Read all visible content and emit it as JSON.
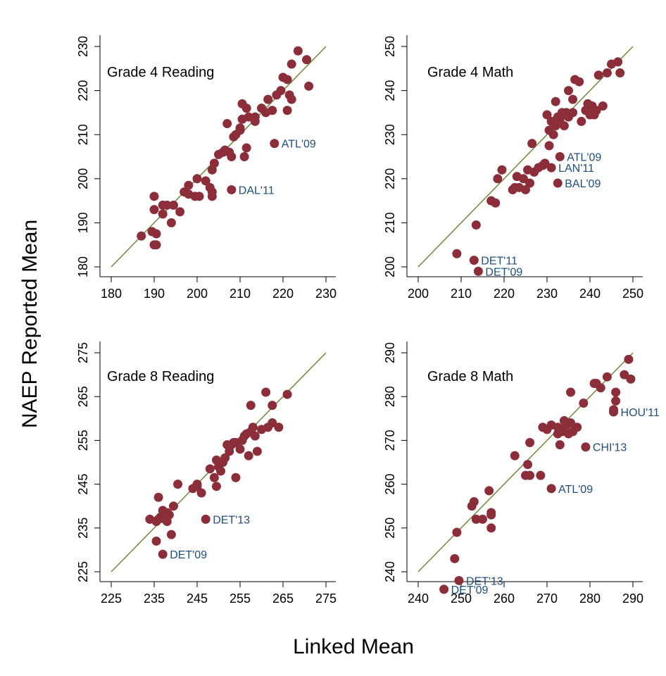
{
  "figure": {
    "ylabel": "NAEP Reported Mean",
    "xlabel": "Linked Mean"
  },
  "colors": {
    "point": "#8b2e3a",
    "line": "#6a8a3a",
    "label": "#1f4e79"
  },
  "chart_data": [
    {
      "type": "scatter",
      "title": "Grade 4 Reading",
      "xlim": [
        180,
        230
      ],
      "ylim": [
        180,
        230
      ],
      "xticks": [
        180,
        190,
        200,
        210,
        220,
        230
      ],
      "yticks": [
        180,
        190,
        200,
        210,
        220,
        230
      ],
      "fit_line": [
        [
          180,
          180
        ],
        [
          230,
          230
        ]
      ],
      "points": [
        [
          187,
          187
        ],
        [
          189.5,
          188
        ],
        [
          190,
          185
        ],
        [
          190.5,
          185
        ],
        [
          190.5,
          187.5
        ],
        [
          190,
          193
        ],
        [
          190,
          196
        ],
        [
          192,
          192
        ],
        [
          192,
          194
        ],
        [
          193,
          194
        ],
        [
          194,
          190
        ],
        [
          194.5,
          194
        ],
        [
          196,
          192.5
        ],
        [
          197,
          197
        ],
        [
          198,
          196.5
        ],
        [
          198,
          198.5
        ],
        [
          199.5,
          196
        ],
        [
          200,
          200
        ],
        [
          200.5,
          196
        ],
        [
          202,
          199.5
        ],
        [
          203,
          198
        ],
        [
          203.5,
          196
        ],
        [
          203.5,
          197
        ],
        [
          203.5,
          202
        ],
        [
          204,
          203.5
        ],
        [
          205,
          205.5
        ],
        [
          206,
          206
        ],
        [
          206.5,
          206.5
        ],
        [
          207,
          212.5
        ],
        [
          207.5,
          206
        ],
        [
          208,
          205
        ],
        [
          208.5,
          209.5
        ],
        [
          209,
          210
        ],
        [
          210,
          211
        ],
        [
          210,
          211.5
        ],
        [
          210.5,
          217
        ],
        [
          210.5,
          213.5
        ],
        [
          211,
          205
        ],
        [
          211.5,
          207
        ],
        [
          211.5,
          216
        ],
        [
          212,
          214
        ],
        [
          213.5,
          213
        ],
        [
          213.5,
          214
        ],
        [
          215,
          216
        ],
        [
          216,
          215
        ],
        [
          216.5,
          218
        ],
        [
          217.5,
          215.5
        ],
        [
          218.5,
          219
        ],
        [
          219.5,
          220
        ],
        [
          220,
          223
        ],
        [
          221,
          215.5
        ],
        [
          221,
          222.5
        ],
        [
          221.5,
          219
        ],
        [
          222,
          218
        ],
        [
          222,
          226
        ],
        [
          223.5,
          229
        ],
        [
          225.5,
          227
        ],
        [
          226,
          221
        ],
        [
          208,
          197.5
        ],
        [
          218,
          208
        ]
      ],
      "labeled": [
        {
          "x": 218,
          "y": 208,
          "label": "ATL'09"
        },
        {
          "x": 208,
          "y": 197.5,
          "label": "DAL'11"
        }
      ]
    },
    {
      "type": "scatter",
      "title": "Grade 4 Math",
      "xlim": [
        200,
        250
      ],
      "ylim": [
        200,
        250
      ],
      "xticks": [
        200,
        210,
        220,
        230,
        240,
        250
      ],
      "yticks": [
        200,
        210,
        220,
        230,
        240,
        250
      ],
      "fit_line": [
        [
          200,
          200
        ],
        [
          250,
          250
        ]
      ],
      "points": [
        [
          209,
          203
        ],
        [
          213,
          201.5
        ],
        [
          214,
          199
        ],
        [
          213.5,
          209.5
        ],
        [
          217,
          215
        ],
        [
          218,
          214.5
        ],
        [
          218.5,
          220
        ],
        [
          219.5,
          222
        ],
        [
          222,
          217.5
        ],
        [
          222.5,
          218
        ],
        [
          223,
          220.5
        ],
        [
          223.5,
          218
        ],
        [
          224.5,
          220
        ],
        [
          225,
          217.5
        ],
        [
          225.5,
          222
        ],
        [
          226,
          219
        ],
        [
          226.5,
          228
        ],
        [
          227,
          221.5
        ],
        [
          228,
          222.5
        ],
        [
          229,
          223
        ],
        [
          229.5,
          223.5
        ],
        [
          230,
          234.5
        ],
        [
          230.5,
          227.5
        ],
        [
          230.5,
          231
        ],
        [
          231,
          233
        ],
        [
          231.5,
          230
        ],
        [
          232,
          232
        ],
        [
          232,
          237.5
        ],
        [
          232.5,
          234
        ],
        [
          233,
          233.5
        ],
        [
          233.5,
          235
        ],
        [
          234,
          232
        ],
        [
          234.5,
          235
        ],
        [
          235,
          234
        ],
        [
          235,
          240
        ],
        [
          236,
          235
        ],
        [
          236,
          238
        ],
        [
          236.5,
          242.5
        ],
        [
          237.5,
          242
        ],
        [
          238,
          233
        ],
        [
          239,
          235.5
        ],
        [
          239.5,
          237
        ],
        [
          240,
          234.5
        ],
        [
          240.5,
          236.5
        ],
        [
          241,
          234.5
        ],
        [
          241.5,
          235.5
        ],
        [
          242,
          243.5
        ],
        [
          243,
          236.5
        ],
        [
          244,
          244
        ],
        [
          245,
          246
        ],
        [
          246.5,
          246.5
        ],
        [
          247,
          244
        ],
        [
          233,
          225
        ],
        [
          231,
          222.5
        ],
        [
          232.5,
          219
        ]
      ],
      "labeled": [
        {
          "x": 214,
          "y": 199,
          "label": "DET'09"
        },
        {
          "x": 213,
          "y": 201.5,
          "label": "DET'11"
        },
        {
          "x": 233,
          "y": 225,
          "label": "ATL'09"
        },
        {
          "x": 231,
          "y": 222.5,
          "label": "LAN'11"
        },
        {
          "x": 232.5,
          "y": 219,
          "label": "BAL'09"
        }
      ]
    },
    {
      "type": "scatter",
      "title": "Grade 8 Reading",
      "xlim": [
        225,
        275
      ],
      "ylim": [
        225,
        275
      ],
      "xticks": [
        225,
        235,
        245,
        255,
        265,
        275
      ],
      "yticks": [
        225,
        235,
        245,
        255,
        265,
        275
      ],
      "fit_line": [
        [
          225,
          225
        ],
        [
          275,
          275
        ]
      ],
      "points": [
        [
          234,
          237
        ],
        [
          235.5,
          236.5
        ],
        [
          236,
          242
        ],
        [
          236,
          237
        ],
        [
          236.5,
          237.5
        ],
        [
          237,
          239
        ],
        [
          237.5,
          237
        ],
        [
          238,
          236.5
        ],
        [
          238,
          238.5
        ],
        [
          238.5,
          238
        ],
        [
          239,
          233.5
        ],
        [
          239.5,
          240
        ],
        [
          240.5,
          245
        ],
        [
          244,
          244
        ],
        [
          245,
          244.5
        ],
        [
          245,
          245
        ],
        [
          246,
          243
        ],
        [
          248,
          248.5
        ],
        [
          249,
          246.5
        ],
        [
          249.5,
          244.5
        ],
        [
          249.5,
          250.5
        ],
        [
          250,
          249
        ],
        [
          250.5,
          248
        ],
        [
          251,
          250
        ],
        [
          251.5,
          251
        ],
        [
          252,
          254
        ],
        [
          252.5,
          252.5
        ],
        [
          253,
          254
        ],
        [
          253.5,
          254.5
        ],
        [
          254,
          246.5
        ],
        [
          254,
          254.5
        ],
        [
          255,
          253
        ],
        [
          255.5,
          255
        ],
        [
          256,
          256
        ],
        [
          256.5,
          256.5
        ],
        [
          257,
          251.5
        ],
        [
          257.5,
          257
        ],
        [
          257.5,
          263
        ],
        [
          258,
          258
        ],
        [
          258.5,
          256
        ],
        [
          259,
          252.5
        ],
        [
          260,
          257.5
        ],
        [
          261,
          266
        ],
        [
          261.5,
          258
        ],
        [
          262.5,
          263
        ],
        [
          262.5,
          259
        ],
        [
          264,
          258
        ],
        [
          266,
          265.5
        ],
        [
          235.5,
          232
        ],
        [
          237,
          229
        ],
        [
          247,
          237
        ]
      ],
      "labeled": [
        {
          "x": 237,
          "y": 229,
          "label": "DET'09"
        },
        {
          "x": 247,
          "y": 237,
          "label": "DET'13"
        }
      ]
    },
    {
      "type": "scatter",
      "title": "Grade 8 Math",
      "xlim": [
        240,
        290
      ],
      "ylim": [
        240,
        290
      ],
      "xticks": [
        240,
        250,
        260,
        270,
        280,
        290
      ],
      "yticks": [
        240,
        250,
        260,
        270,
        280,
        290
      ],
      "fit_line": [
        [
          240,
          240
        ],
        [
          290,
          290
        ]
      ],
      "points": [
        [
          248.5,
          243
        ],
        [
          249,
          249
        ],
        [
          252.5,
          255
        ],
        [
          253,
          256
        ],
        [
          253.5,
          252
        ],
        [
          255,
          252
        ],
        [
          256.5,
          258.5
        ],
        [
          257,
          250
        ],
        [
          257,
          253
        ],
        [
          257,
          253.5
        ],
        [
          262.5,
          266.5
        ],
        [
          265,
          262
        ],
        [
          265.5,
          264.5
        ],
        [
          266,
          262
        ],
        [
          266,
          269.5
        ],
        [
          268.5,
          262
        ],
        [
          269,
          273
        ],
        [
          270,
          272.5
        ],
        [
          271,
          273.5
        ],
        [
          272.5,
          271.5
        ],
        [
          272.5,
          273
        ],
        [
          273,
          269
        ],
        [
          273.5,
          272
        ],
        [
          274,
          274.5
        ],
        [
          274.5,
          273.5
        ],
        [
          275,
          271.5
        ],
        [
          275.5,
          274
        ],
        [
          275.5,
          281
        ],
        [
          276,
          272
        ],
        [
          277,
          273
        ],
        [
          278.5,
          278.5
        ],
        [
          281,
          283
        ],
        [
          281.5,
          283
        ],
        [
          282.5,
          282
        ],
        [
          284,
          284.5
        ],
        [
          285.5,
          277
        ],
        [
          286,
          281
        ],
        [
          286,
          279
        ],
        [
          288,
          285
        ],
        [
          289,
          288.5
        ],
        [
          289.5,
          284
        ],
        [
          246,
          236
        ],
        [
          249.5,
          238
        ],
        [
          271,
          259
        ],
        [
          279,
          268.5
        ],
        [
          285.5,
          276.5
        ]
      ],
      "labeled": [
        {
          "x": 246,
          "y": 236,
          "label": "DET'09"
        },
        {
          "x": 249.5,
          "y": 238,
          "label": "DET'13"
        },
        {
          "x": 271,
          "y": 259,
          "label": "ATL'09"
        },
        {
          "x": 279,
          "y": 268.5,
          "label": "CHI'13"
        },
        {
          "x": 285.5,
          "y": 276.5,
          "label": "HOU'11"
        }
      ]
    }
  ]
}
